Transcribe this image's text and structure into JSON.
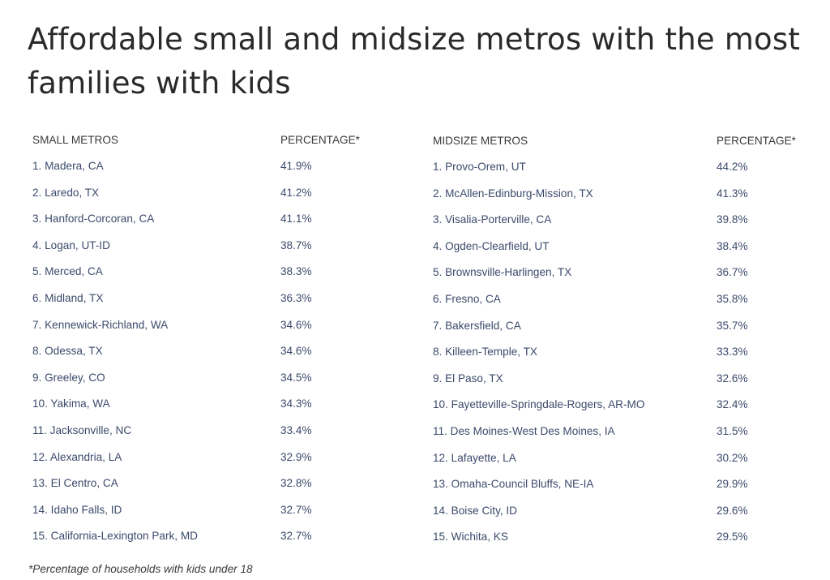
{
  "title": "Affordable small and midsize metros with the most families with kids",
  "small_metros": {
    "header_name": "SMALL METROS",
    "header_pct": "PERCENTAGE*",
    "rows": [
      {
        "name": "1. Madera, CA",
        "pct": "41.9%"
      },
      {
        "name": "2. Laredo, TX",
        "pct": "41.2%"
      },
      {
        "name": "3. Hanford-Corcoran, CA",
        "pct": "41.1%"
      },
      {
        "name": "4. Logan, UT-ID",
        "pct": "38.7%"
      },
      {
        "name": "5. Merced, CA",
        "pct": "38.3%"
      },
      {
        "name": "6. Midland, TX",
        "pct": "36.3%"
      },
      {
        "name": "7. Kennewick-Richland, WA",
        "pct": "34.6%"
      },
      {
        "name": "8. Odessa, TX",
        "pct": "34.6%"
      },
      {
        "name": "9. Greeley, CO",
        "pct": "34.5%"
      },
      {
        "name": "10. Yakima, WA",
        "pct": "34.3%"
      },
      {
        "name": "11. Jacksonville, NC",
        "pct": "33.4%"
      },
      {
        "name": "12. Alexandria, LA",
        "pct": "32.9%"
      },
      {
        "name": "13. El Centro, CA",
        "pct": "32.8%"
      },
      {
        "name": "14. Idaho Falls, ID",
        "pct": "32.7%"
      },
      {
        "name": "15. California-Lexington Park, MD",
        "pct": "32.7%"
      }
    ]
  },
  "midsize_metros": {
    "header_name": "MIDSIZE METROS",
    "header_pct": "PERCENTAGE*",
    "rows": [
      {
        "name": "1. Provo-Orem, UT",
        "pct": "44.2%"
      },
      {
        "name": "2. McAllen-Edinburg-Mission, TX",
        "pct": "41.3%"
      },
      {
        "name": "3. Visalia-Porterville, CA",
        "pct": "39.8%"
      },
      {
        "name": "4. Ogden-Clearfield, UT",
        "pct": "38.4%"
      },
      {
        "name": "5. Brownsville-Harlingen, TX",
        "pct": "36.7%"
      },
      {
        "name": "6. Fresno, CA",
        "pct": "35.8%"
      },
      {
        "name": "7. Bakersfield, CA",
        "pct": "35.7%"
      },
      {
        "name": "8. Killeen-Temple, TX",
        "pct": "33.3%"
      },
      {
        "name": "9. El Paso, TX",
        "pct": "32.6%"
      },
      {
        "name": "10. Fayetteville-Springdale-Rogers, AR-MO",
        "pct": "32.4%"
      },
      {
        "name": "11. Des Moines-West Des Moines, IA",
        "pct": "31.5%"
      },
      {
        "name": "12. Lafayette, LA",
        "pct": "30.2%"
      },
      {
        "name": "13. Omaha-Council Bluffs, NE-IA",
        "pct": "29.9%"
      },
      {
        "name": "14. Boise City, ID",
        "pct": "29.6%"
      },
      {
        "name": "15. Wichita, KS",
        "pct": "29.5%"
      }
    ]
  },
  "footnote": "*Percentage of households with kids under 18",
  "colors": {
    "title": "#2a2a2a",
    "header_text": "#3a3a3a",
    "row_text": "#3c4a6b",
    "background": "#ffffff"
  }
}
